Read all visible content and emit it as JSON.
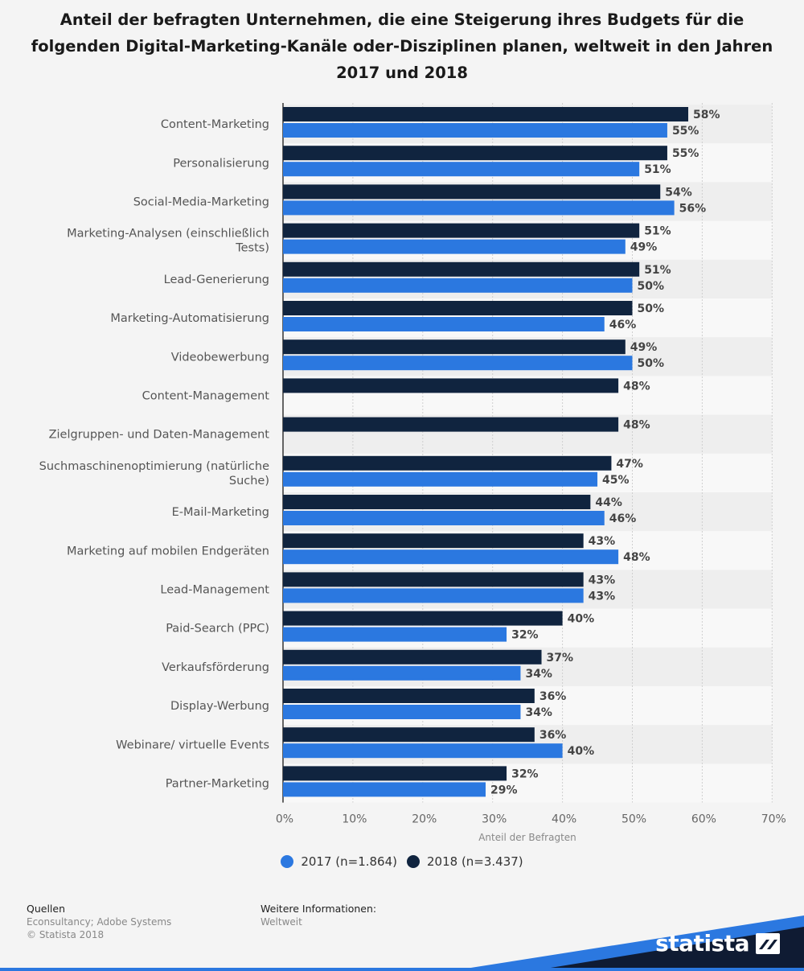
{
  "colors": {
    "s2017": "#2b78e0",
    "s2018": "#10243f",
    "brand_dark": "#0f1b33",
    "brand_blue": "#2b78e0"
  },
  "chart_data": {
    "type": "bar",
    "orientation": "horizontal",
    "title": "Anteil der befragten Unternehmen, die eine Steigerung ihres Budgets für die folgenden Digital-Marketing-Kanäle oder-Disziplinen planen, weltweit in den Jahren 2017 und 2018",
    "xlabel": "Anteil der Befragten",
    "xlim": [
      0,
      70
    ],
    "xticks": [
      "0%",
      "10%",
      "20%",
      "30%",
      "40%",
      "50%",
      "60%",
      "70%"
    ],
    "categories": [
      "Content-Marketing",
      "Personalisierung",
      "Social-Media-Marketing",
      "Marketing-Analysen (einschließlich Tests)",
      "Lead-Generierung",
      "Marketing-Automatisierung",
      "Videobewerbung",
      "Content-Management",
      "Zielgruppen- und Daten-Management",
      "Suchmaschinenoptimierung (natürliche Suche)",
      "E-Mail-Marketing",
      "Marketing auf mobilen Endgeräten",
      "Lead-Management",
      "Paid-Search (PPC)",
      "Verkaufsförderung",
      "Display-Werbung",
      "Webinare/ virtuelle Events",
      "Partner-Marketing"
    ],
    "series": [
      {
        "name": "2018 (n=3.437)",
        "values": [
          58,
          55,
          54,
          51,
          51,
          50,
          49,
          48,
          48,
          47,
          44,
          43,
          43,
          40,
          37,
          36,
          36,
          32
        ]
      },
      {
        "name": "2017 (n=1.864)",
        "values": [
          55,
          51,
          56,
          49,
          50,
          46,
          50,
          null,
          null,
          45,
          46,
          48,
          43,
          32,
          34,
          34,
          40,
          29
        ]
      }
    ],
    "legend": {
      "placement": "bottom",
      "entries": [
        "2017 (n=1.864)",
        "2018 (n=3.437)"
      ]
    },
    "grid": true
  },
  "footer": {
    "sources_heading": "Quellen",
    "sources_line1": "Econsultancy; Adobe Systems",
    "sources_line2": "© Statista 2018",
    "info_heading": "Weitere Informationen:",
    "info_line1": "Weltweit",
    "brand": "statista"
  }
}
